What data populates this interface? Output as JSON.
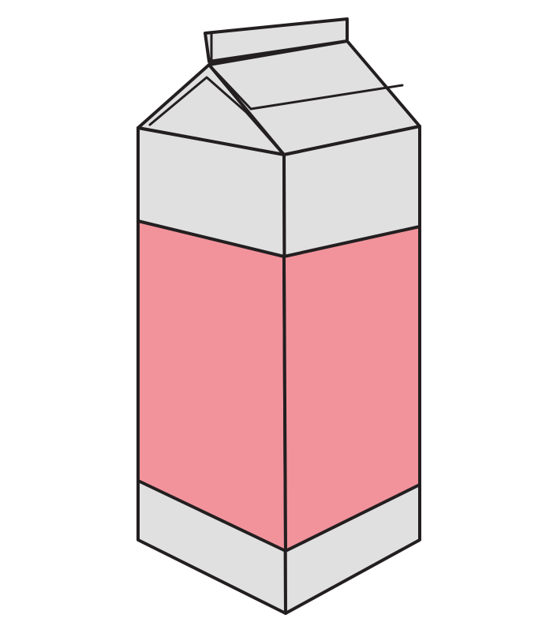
{
  "illustration": {
    "subject": "milk-carton",
    "colors": {
      "background": "#ffffff",
      "carton_gray": "#e0e0e0",
      "label_pink": "#f2939c",
      "outline": "#231f20"
    }
  }
}
